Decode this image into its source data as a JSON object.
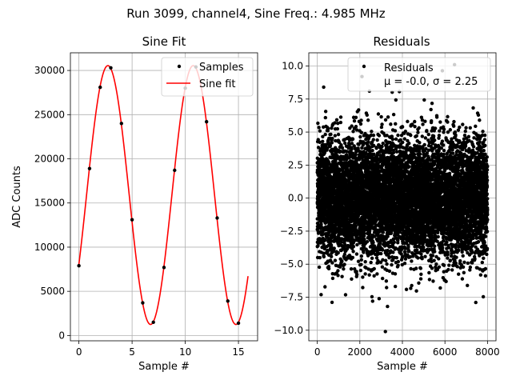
{
  "suptitle": "Run 3099, channel4, Sine Freq.: 4.985 MHz",
  "colors": {
    "samples": "#000000",
    "fit": "#ff0000",
    "grid": "#b0b0b0",
    "legend_border": "#cccccc"
  },
  "chart_data": [
    {
      "type": "scatter",
      "title": "Sine Fit",
      "xlabel": "Sample #",
      "ylabel": "ADC Counts",
      "xlim": [
        -0.8,
        16.8
      ],
      "ylim": [
        -600,
        32000
      ],
      "xticks": [
        0,
        5,
        10,
        15
      ],
      "xtick_labels": [
        "0",
        "5",
        "10",
        "15"
      ],
      "yticks": [
        0,
        5000,
        10000,
        15000,
        20000,
        25000,
        30000
      ],
      "ytick_labels": [
        "0",
        "5000",
        "10000",
        "15000",
        "20000",
        "25000",
        "30000"
      ],
      "grid": true,
      "legend_position": "top-right",
      "series": [
        {
          "name": "Samples",
          "kind": "scatter",
          "x": [
            0,
            1,
            2,
            3,
            4,
            5,
            6,
            7,
            8,
            9,
            10,
            11,
            12,
            13,
            14,
            15
          ],
          "y": [
            7900,
            18900,
            28100,
            30300,
            24000,
            13100,
            3700,
            1500,
            7700,
            18700,
            28000,
            30400,
            24200,
            13300,
            3900,
            1400
          ]
        },
        {
          "name": "Sine fit",
          "kind": "line",
          "model": {
            "amplitude": 14650,
            "offset": 15900,
            "period": 8.023,
            "phase": -0.563
          },
          "x_range": [
            0,
            15.9
          ]
        }
      ]
    },
    {
      "type": "scatter",
      "title": "Residuals",
      "xlabel": "Sample #",
      "ylabel": "",
      "xlim": [
        -400,
        8400
      ],
      "ylim": [
        -10.8,
        11.0
      ],
      "xticks": [
        0,
        2000,
        4000,
        6000,
        8000
      ],
      "xtick_labels": [
        "0",
        "2000",
        "4000",
        "6000",
        "8000"
      ],
      "yticks": [
        -10.0,
        -7.5,
        -5.0,
        -2.5,
        0.0,
        2.5,
        5.0,
        7.5,
        10.0
      ],
      "ytick_labels": [
        "−10.0",
        "−7.5",
        "−5.0",
        "−2.5",
        "0.0",
        "2.5",
        "5.0",
        "7.5",
        "10.0"
      ],
      "grid": true,
      "legend_position": "top-right",
      "series": [
        {
          "name": "Residuals",
          "kind": "scatter",
          "count": 8000,
          "mean": -0.0,
          "sigma": 2.25,
          "x_range": [
            0,
            8000
          ],
          "outliers": [
            {
              "x": 3200,
              "y": -10.1
            },
            {
              "x": 6450,
              "y": 10.1
            },
            {
              "x": 300,
              "y": 8.4
            },
            {
              "x": 2100,
              "y": 9.2
            },
            {
              "x": 3300,
              "y": -8.2
            },
            {
              "x": 2600,
              "y": -7.8
            },
            {
              "x": 7450,
              "y": -7.9
            },
            {
              "x": 2450,
              "y": 8.1
            }
          ]
        }
      ],
      "legend_stats_line": "μ = -0.0, σ = 2.25"
    }
  ]
}
